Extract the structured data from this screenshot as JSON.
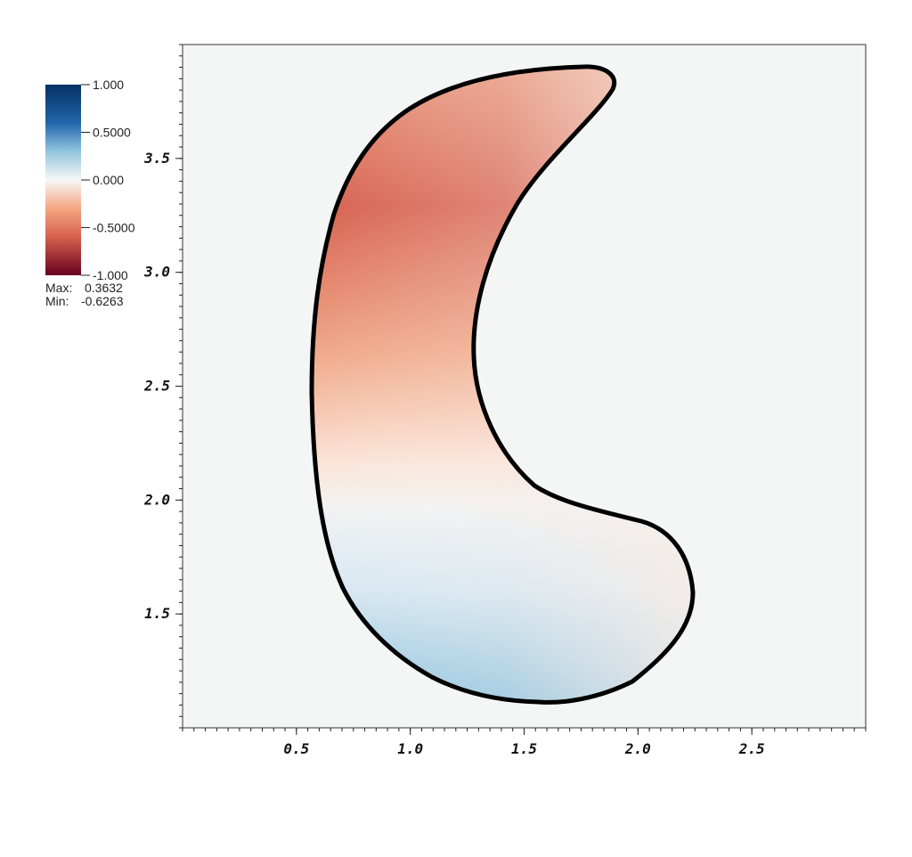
{
  "chart_data": {
    "type": "field",
    "xlim": [
      0,
      3
    ],
    "ylim": [
      1,
      4
    ],
    "xticks": [
      0.5,
      {
        "value": 1,
        "label": "1.0"
      },
      1.5,
      {
        "value": 2,
        "label": "2.0"
      },
      2.5
    ],
    "yticks": [
      {
        "value": 1.5,
        "label": "1.5"
      },
      {
        "value": 2,
        "label": "2.0"
      },
      2.5,
      {
        "value": 3,
        "label": "3.0"
      },
      3.5
    ],
    "colorbar": {
      "clim": [
        -1,
        1
      ],
      "ticks": [
        {
          "value": 1,
          "label": "1.000"
        },
        {
          "value": 0.5,
          "label": "0.5000"
        },
        {
          "value": 0,
          "label": "0.000"
        },
        {
          "value": -0.5,
          "label": "-0.5000"
        },
        {
          "value": -1,
          "label": "-1.000"
        }
      ],
      "max_label": "Max:",
      "max": 0.3632,
      "min_label": "Min:",
      "min": -0.6263
    }
  }
}
